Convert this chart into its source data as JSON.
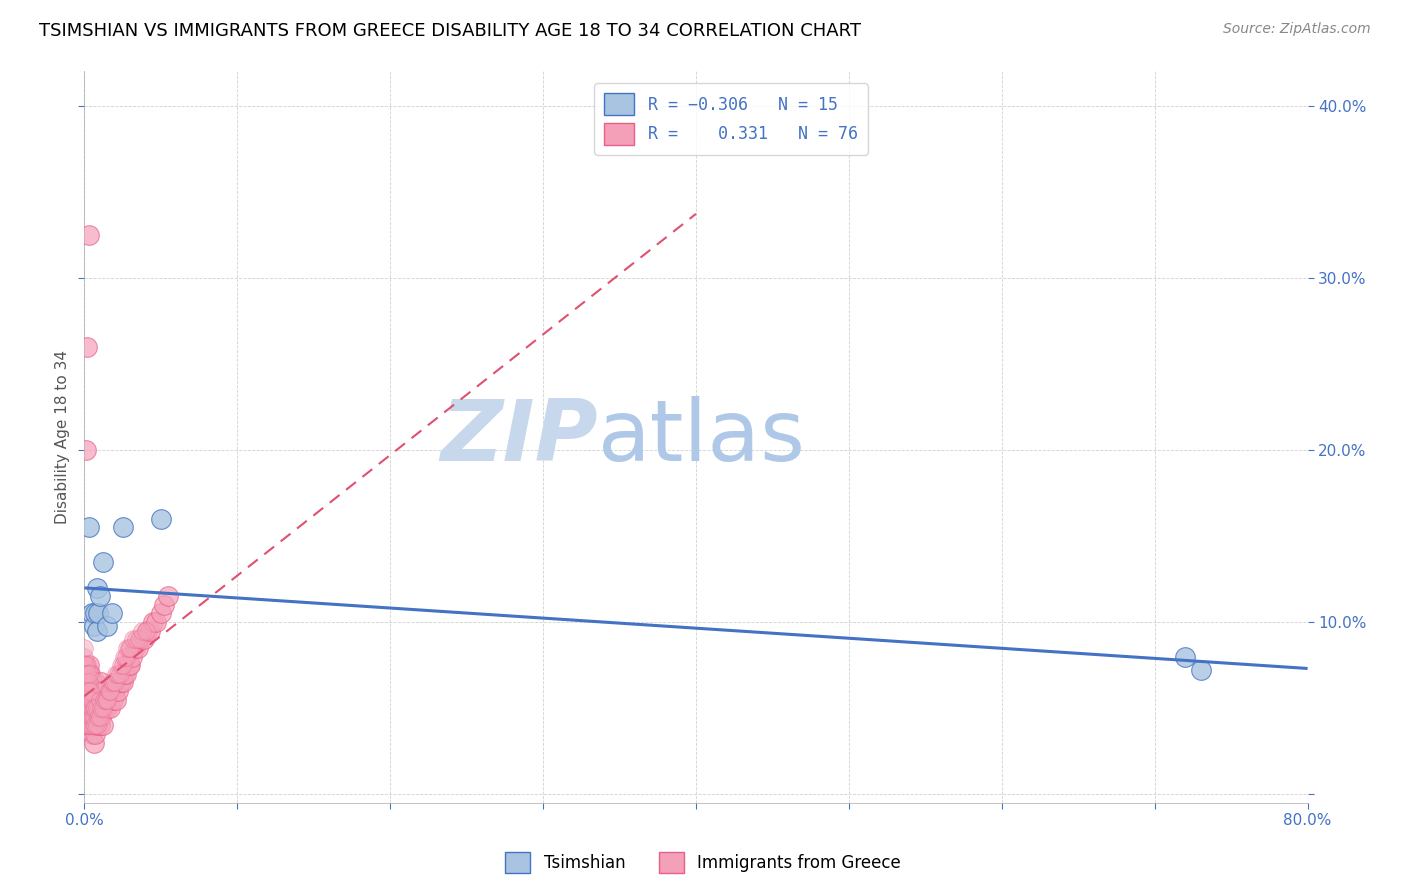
{
  "title": "TSIMSHIAN VS IMMIGRANTS FROM GREECE DISABILITY AGE 18 TO 34 CORRELATION CHART",
  "source": "Source: ZipAtlas.com",
  "ylabel": "Disability Age 18 to 34",
  "xlim": [
    0.0,
    0.8
  ],
  "ylim": [
    -0.005,
    0.42
  ],
  "xticks": [
    0.0,
    0.1,
    0.2,
    0.3,
    0.4,
    0.5,
    0.6,
    0.7,
    0.8
  ],
  "xticklabels": [
    "0.0%",
    "",
    "",
    "",
    "",
    "",
    "",
    "",
    "80.0%"
  ],
  "yticks": [
    0.0,
    0.1,
    0.2,
    0.3,
    0.4
  ],
  "yticklabels": [
    "",
    "10.0%",
    "20.0%",
    "30.0%",
    "40.0%"
  ],
  "blue_scatter_color": "#a8c4e0",
  "blue_scatter_edge": "#4472c4",
  "pink_scatter_color": "#f4a0b8",
  "pink_scatter_edge": "#e8608a",
  "blue_line_color": "#4472c4",
  "pink_line_color": "#e05070",
  "tsimshian_R": -0.306,
  "tsimshian_N": 15,
  "greece_R": 0.331,
  "greece_N": 76,
  "tsimshian_x": [
    0.003,
    0.005,
    0.006,
    0.007,
    0.008,
    0.008,
    0.009,
    0.01,
    0.012,
    0.015,
    0.018,
    0.025,
    0.05,
    0.72,
    0.73
  ],
  "tsimshian_y": [
    0.155,
    0.105,
    0.098,
    0.105,
    0.12,
    0.095,
    0.105,
    0.115,
    0.135,
    0.098,
    0.105,
    0.155,
    0.16,
    0.08,
    0.072
  ],
  "greece_cluster_x": [
    0.0,
    0.0,
    0.0,
    0.0,
    0.0,
    0.001,
    0.001,
    0.001,
    0.001,
    0.001,
    0.002,
    0.002,
    0.002,
    0.002,
    0.003,
    0.003,
    0.003,
    0.003,
    0.003,
    0.004,
    0.004,
    0.004,
    0.004,
    0.005,
    0.005,
    0.005,
    0.005,
    0.006,
    0.006,
    0.006,
    0.007,
    0.007,
    0.007,
    0.008,
    0.008,
    0.009,
    0.009,
    0.01,
    0.01,
    0.011,
    0.011,
    0.012,
    0.012,
    0.013,
    0.014,
    0.015,
    0.016,
    0.017,
    0.018,
    0.019,
    0.02,
    0.021,
    0.022,
    0.023,
    0.024,
    0.025,
    0.026,
    0.027,
    0.028,
    0.029,
    0.03,
    0.031,
    0.033,
    0.035,
    0.037,
    0.039,
    0.041,
    0.043,
    0.045,
    0.047,
    0.05,
    0.052,
    0.055,
    0.001,
    0.002,
    0.003
  ],
  "greece_cluster_y": [
    0.045,
    0.055,
    0.06,
    0.07,
    0.075,
    0.05,
    0.06,
    0.065,
    0.07,
    0.075,
    0.04,
    0.05,
    0.06,
    0.065,
    0.04,
    0.05,
    0.06,
    0.07,
    0.075,
    0.04,
    0.05,
    0.06,
    0.07,
    0.035,
    0.045,
    0.055,
    0.065,
    0.03,
    0.04,
    0.055,
    0.035,
    0.05,
    0.065,
    0.04,
    0.055,
    0.045,
    0.06,
    0.04,
    0.055,
    0.045,
    0.065,
    0.04,
    0.06,
    0.05,
    0.055,
    0.05,
    0.055,
    0.05,
    0.06,
    0.055,
    0.06,
    0.055,
    0.06,
    0.065,
    0.065,
    0.065,
    0.07,
    0.07,
    0.075,
    0.075,
    0.075,
    0.08,
    0.085,
    0.085,
    0.09,
    0.09,
    0.095,
    0.095,
    0.1,
    0.1,
    0.105,
    0.11,
    0.115,
    0.2,
    0.26,
    0.325
  ],
  "greece_many_x": [
    0.0,
    0.0,
    0.0,
    0.0,
    0.0,
    0.0,
    0.0,
    0.0,
    0.0,
    0.0,
    0.001,
    0.001,
    0.001,
    0.001,
    0.001,
    0.001,
    0.001,
    0.001,
    0.002,
    0.002,
    0.002,
    0.002,
    0.002,
    0.002,
    0.002,
    0.003,
    0.003,
    0.003,
    0.003,
    0.003,
    0.003,
    0.003,
    0.004,
    0.004,
    0.004,
    0.004,
    0.004,
    0.005,
    0.005,
    0.005,
    0.005,
    0.006,
    0.006,
    0.006,
    0.007,
    0.007,
    0.008,
    0.008,
    0.009,
    0.01,
    0.01,
    0.011,
    0.012,
    0.013,
    0.014,
    0.015,
    0.016,
    0.017,
    0.018,
    0.019,
    0.02,
    0.021,
    0.022,
    0.023,
    0.024,
    0.025,
    0.026,
    0.027,
    0.028,
    0.029,
    0.03,
    0.032,
    0.034,
    0.036,
    0.038,
    0.04
  ],
  "greece_many_y": [
    0.04,
    0.045,
    0.05,
    0.055,
    0.06,
    0.065,
    0.07,
    0.075,
    0.08,
    0.085,
    0.04,
    0.045,
    0.05,
    0.055,
    0.06,
    0.065,
    0.07,
    0.075,
    0.04,
    0.045,
    0.05,
    0.055,
    0.06,
    0.065,
    0.07,
    0.04,
    0.045,
    0.05,
    0.055,
    0.06,
    0.065,
    0.07,
    0.04,
    0.045,
    0.05,
    0.055,
    0.06,
    0.04,
    0.045,
    0.05,
    0.055,
    0.04,
    0.045,
    0.05,
    0.04,
    0.05,
    0.04,
    0.05,
    0.045,
    0.045,
    0.055,
    0.05,
    0.05,
    0.055,
    0.055,
    0.055,
    0.06,
    0.06,
    0.065,
    0.065,
    0.065,
    0.07,
    0.07,
    0.07,
    0.075,
    0.075,
    0.08,
    0.08,
    0.085,
    0.085,
    0.085,
    0.09,
    0.09,
    0.09,
    0.095,
    0.095
  ],
  "watermark_zip_color": "#c8d8ec",
  "watermark_atlas_color": "#b0c8e8",
  "grid_color": "#cccccc",
  "tick_color": "#4472c4",
  "title_fontsize": 13,
  "source_fontsize": 10,
  "tick_fontsize": 11,
  "ylabel_fontsize": 11
}
